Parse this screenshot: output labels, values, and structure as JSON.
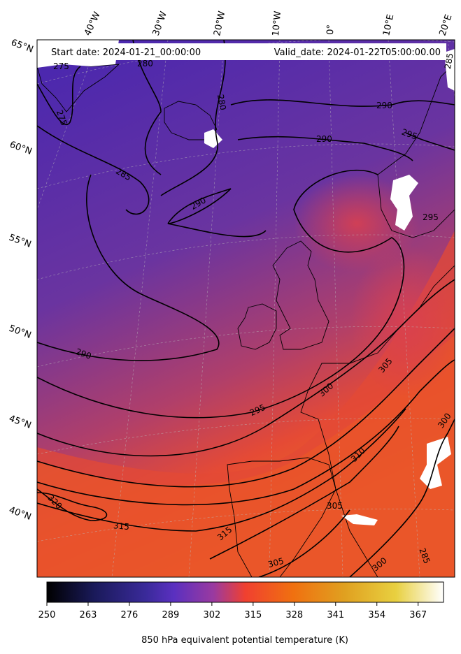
{
  "header": {
    "start_date": "Start date: 2024-01-21_00:00:00",
    "valid_date": "Valid_date: 2024-01-22T05:00:00.00"
  },
  "lon_labels": [
    "40°W",
    "30°W",
    "20°W",
    "10°W",
    "0°",
    "10°E",
    "20°E"
  ],
  "lat_labels": [
    "65°N",
    "60°N",
    "55°N",
    "50°N",
    "45°N",
    "40°N"
  ],
  "contour_labels": [
    "275",
    "275",
    "280",
    "280",
    "285",
    "290",
    "290",
    "290",
    "290",
    "295",
    "295",
    "295",
    "300",
    "300",
    "300",
    "305",
    "305",
    "305",
    "310",
    "315",
    "315",
    "320",
    "285",
    "285"
  ],
  "colorbar": {
    "ticks": [
      "250",
      "263",
      "276",
      "289",
      "302",
      "315",
      "328",
      "341",
      "354",
      "367"
    ],
    "label": "850 hPa equivalent potential temperature (K)",
    "colormap": "CMRmap",
    "range": [
      250,
      375
    ]
  },
  "colors": {
    "cold": "#4a2aa8",
    "mid": "#8a3a8c",
    "warm": "#e8452f",
    "hot": "#ee6a1a"
  }
}
